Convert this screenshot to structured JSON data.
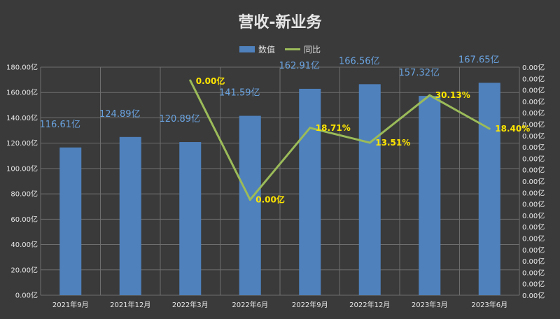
{
  "title": "营收-新业务",
  "colors": {
    "bar": "#4f81bd",
    "line": "#9bbb59",
    "bar_label": "#6aa3e0",
    "line_label": "#ffe600",
    "grid": "#6e6e6e"
  },
  "chart_data": {
    "type": "bar",
    "title": "营收-新业务",
    "categories": [
      "2021年9月",
      "2021年12月",
      "2022年3月",
      "2022年6月",
      "2022年9月",
      "2022年12月",
      "2023年3月",
      "2023年6月"
    ],
    "series": [
      {
        "name": "数值",
        "type": "bar",
        "axis": "left",
        "values": [
          116.61,
          124.89,
          120.89,
          141.59,
          162.91,
          166.56,
          157.32,
          167.65
        ],
        "labels": [
          "116.61亿",
          "124.89亿",
          "120.89亿",
          "141.59亿",
          "162.91亿",
          "166.56亿",
          "157.32亿",
          "167.65亿"
        ]
      },
      {
        "name": "同比",
        "type": "line",
        "axis": "right",
        "points": [
          {
            "category": "2022年3月",
            "value": 0.0,
            "label": "0.00亿"
          },
          {
            "category": "2022年6月",
            "value": 0.0,
            "label": "0.00亿"
          },
          {
            "category": "2022年9月",
            "value": 18.71,
            "label": "18.71%"
          },
          {
            "category": "2022年12月",
            "value": 13.51,
            "label": "13.51%"
          },
          {
            "category": "2023年3月",
            "value": 30.13,
            "label": "30.13%"
          },
          {
            "category": "2023年6月",
            "value": 18.4,
            "label": "18.40%"
          }
        ]
      }
    ],
    "y_left": {
      "range": [
        0,
        180
      ],
      "ticks": [
        "0.00亿",
        "20.00亿",
        "40.00亿",
        "60.00亿",
        "80.00亿",
        "100.00亿",
        "120.00亿",
        "140.00亿",
        "160.00亿",
        "180.00亿"
      ]
    },
    "y_right": {
      "tick_labels": [
        "0.00亿",
        "0.00亿",
        "0.00亿",
        "0.00亿",
        "0.00亿",
        "0.00亿",
        "0.00亿",
        "0.00亿",
        "0.00亿",
        "0.00亿",
        "0.00亿",
        "0.00亿",
        "0.00亿",
        "0.00亿",
        "0.00亿",
        "0.00亿",
        "0.00亿",
        "0.00亿",
        "0.00亿",
        "0.00亿",
        "0.00亿"
      ]
    },
    "grid": true,
    "legend": "top-center"
  }
}
